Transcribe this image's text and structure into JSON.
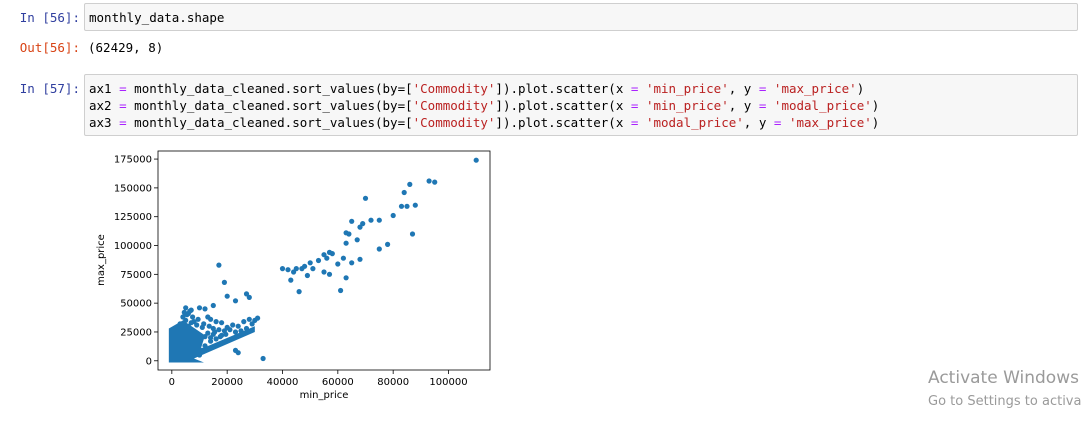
{
  "cells": [
    {
      "prompt": "In [56]:",
      "code": "monthly_data.shape"
    },
    {
      "out_prompt": "Out[56]:",
      "output": "(62429, 8)"
    },
    {
      "prompt": "In [57]:",
      "lines": [
        {
          "var": "ax1",
          "op": "=",
          "pre": "monthly_data_cleaned.sort_values(by=[",
          "s1": "'Commodity'",
          "mid": "]).plot.scatter(x",
          "s2": "'min_price'",
          "mid2": ", y",
          "s3": "'max_price'",
          "end": ")"
        },
        {
          "var": "ax2",
          "op": "=",
          "pre": "monthly_data_cleaned.sort_values(by=[",
          "s1": "'Commodity'",
          "mid": "]).plot.scatter(x",
          "s2": "'min_price'",
          "mid2": ", y",
          "s3": "'modal_price'",
          "end": ")"
        },
        {
          "var": "ax3",
          "op": "=",
          "pre": "monthly_data_cleaned.sort_values(by=[",
          "s1": "'Commodity'",
          "mid": "]).plot.scatter(x",
          "s2": "'modal_price'",
          "mid2": ", y",
          "s3": "'max_price'",
          "end": ")"
        }
      ]
    }
  ],
  "chart_data": {
    "type": "scatter",
    "xlabel": "min_price",
    "ylabel": "max_price",
    "xlim": [
      -5000,
      115000
    ],
    "ylim": [
      -8000,
      182000
    ],
    "xticks": [
      0,
      20000,
      40000,
      60000,
      80000,
      100000
    ],
    "yticks": [
      0,
      25000,
      50000,
      75000,
      100000,
      125000,
      150000,
      175000
    ],
    "color": "#1f77b4",
    "points": [
      [
        110000,
        174000
      ],
      [
        93000,
        156000
      ],
      [
        95000,
        155000
      ],
      [
        86000,
        153000
      ],
      [
        84000,
        146000
      ],
      [
        70000,
        141000
      ],
      [
        88000,
        135000
      ],
      [
        85000,
        134000
      ],
      [
        83000,
        134000
      ],
      [
        80000,
        126000
      ],
      [
        72000,
        122000
      ],
      [
        75000,
        122000
      ],
      [
        65000,
        121000
      ],
      [
        69000,
        119000
      ],
      [
        68000,
        116000
      ],
      [
        63000,
        111000
      ],
      [
        64000,
        110000
      ],
      [
        87000,
        110000
      ],
      [
        67000,
        105000
      ],
      [
        63000,
        102000
      ],
      [
        78000,
        101000
      ],
      [
        75000,
        97000
      ],
      [
        57000,
        94000
      ],
      [
        58000,
        93000
      ],
      [
        55000,
        92000
      ],
      [
        56000,
        89000
      ],
      [
        62000,
        89000
      ],
      [
        68000,
        88000
      ],
      [
        65000,
        85000
      ],
      [
        53000,
        87000
      ],
      [
        50000,
        85000
      ],
      [
        48000,
        82000
      ],
      [
        60000,
        84000
      ],
      [
        51000,
        80000
      ],
      [
        40000,
        80000
      ],
      [
        42000,
        79000
      ],
      [
        45000,
        80000
      ],
      [
        47000,
        80000
      ],
      [
        44000,
        77000
      ],
      [
        55000,
        77000
      ],
      [
        57000,
        75000
      ],
      [
        49000,
        74000
      ],
      [
        43000,
        70000
      ],
      [
        63000,
        72000
      ],
      [
        46000,
        60000
      ],
      [
        61000,
        61000
      ],
      [
        17000,
        83000
      ],
      [
        19000,
        68000
      ],
      [
        20000,
        56000
      ],
      [
        23000,
        52000
      ],
      [
        27000,
        58000
      ],
      [
        28000,
        55000
      ],
      [
        15000,
        48000
      ],
      [
        10000,
        46000
      ],
      [
        12000,
        45000
      ],
      [
        5000,
        46000
      ],
      [
        6000,
        41000
      ],
      [
        7000,
        44000
      ],
      [
        4000,
        38000
      ],
      [
        5000,
        35000
      ],
      [
        8000,
        34000
      ],
      [
        9000,
        31000
      ],
      [
        3000,
        32000
      ],
      [
        6000,
        30000
      ],
      [
        7000,
        33000
      ],
      [
        13000,
        38000
      ],
      [
        14000,
        36000
      ],
      [
        16000,
        34000
      ],
      [
        18000,
        33000
      ],
      [
        20000,
        29000
      ],
      [
        22000,
        31000
      ],
      [
        24000,
        30000
      ],
      [
        26000,
        34000
      ],
      [
        28000,
        36000
      ],
      [
        30000,
        35000
      ],
      [
        31000,
        37000
      ],
      [
        11000,
        29000
      ],
      [
        15000,
        28000
      ],
      [
        17000,
        27000
      ],
      [
        19000,
        26000
      ],
      [
        21000,
        27000
      ],
      [
        23000,
        25000
      ],
      [
        25000,
        26000
      ],
      [
        27000,
        28000
      ],
      [
        29000,
        32000
      ],
      [
        13000,
        24000
      ],
      [
        15000,
        23000
      ],
      [
        10000,
        22000
      ],
      [
        12000,
        21000
      ],
      [
        14000,
        20000
      ],
      [
        16000,
        19000
      ],
      [
        18000,
        22000
      ],
      [
        6000,
        25000
      ],
      [
        7000,
        22000
      ],
      [
        8000,
        20000
      ],
      [
        9000,
        18000
      ],
      [
        4000,
        20000
      ],
      [
        5000,
        17000
      ],
      [
        3000,
        14000
      ],
      [
        2000,
        12000
      ],
      [
        1000,
        10000
      ],
      [
        4000,
        13000
      ],
      [
        6000,
        15000
      ],
      [
        8000,
        14000
      ],
      [
        10000,
        16000
      ],
      [
        12000,
        13000
      ],
      [
        14000,
        17000
      ],
      [
        23000,
        9000
      ],
      [
        24000,
        7000
      ],
      [
        33000,
        2000
      ],
      [
        2000,
        8000
      ],
      [
        500,
        5000
      ],
      [
        1000,
        3000
      ],
      [
        300,
        1000
      ],
      [
        2000,
        2000
      ],
      [
        3000,
        5000
      ],
      [
        5000,
        8000
      ],
      [
        7000,
        10000
      ],
      [
        9000,
        11000
      ],
      [
        11000,
        9000
      ],
      [
        6000,
        7000
      ],
      [
        4000,
        4000
      ],
      [
        8000,
        6000
      ],
      [
        10000,
        5000
      ],
      [
        1500,
        15000
      ],
      [
        2500,
        18000
      ],
      [
        3500,
        22000
      ],
      [
        1200,
        26000
      ],
      [
        2200,
        28000
      ],
      [
        800,
        20000
      ],
      [
        1600,
        23000
      ],
      [
        400,
        17000
      ],
      [
        5500,
        40000
      ],
      [
        4500,
        42000
      ],
      [
        6500,
        43000
      ],
      [
        7500,
        38000
      ],
      [
        9500,
        36000
      ],
      [
        11500,
        32000
      ],
      [
        13500,
        30000
      ],
      [
        15500,
        25000
      ],
      [
        17500,
        21000
      ],
      [
        19500,
        23000
      ]
    ]
  }
}
